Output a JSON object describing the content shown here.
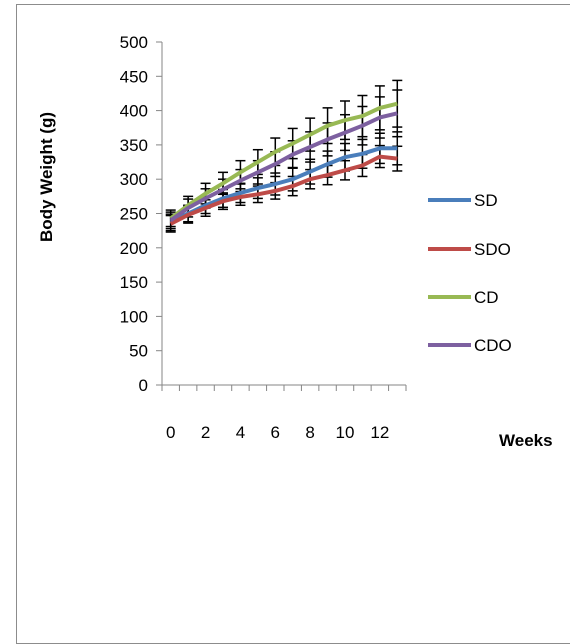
{
  "chart_data": {
    "type": "line",
    "title": "",
    "xlabel": "Weeks",
    "ylabel": "Body Weight (g)",
    "x": [
      0,
      1,
      2,
      3,
      4,
      5,
      6,
      7,
      8,
      9,
      10,
      11,
      12,
      13
    ],
    "x_tick_labels": [
      "0",
      "2",
      "4",
      "6",
      "8",
      "10",
      "12"
    ],
    "x_tick_values": [
      0,
      2,
      4,
      6,
      8,
      10,
      12
    ],
    "ylim": [
      0,
      500
    ],
    "y_ticks": [
      0,
      50,
      100,
      150,
      200,
      250,
      300,
      350,
      400,
      450,
      500
    ],
    "grid": false,
    "legend_position": "right",
    "series": [
      {
        "name": "SD",
        "color": "#4a7ebb",
        "values": [
          237,
          250,
          262,
          272,
          280,
          287,
          293,
          300,
          311,
          322,
          332,
          337,
          345,
          345
        ],
        "error": [
          12,
          12,
          12,
          13,
          14,
          15,
          16,
          17,
          18,
          19,
          20,
          21,
          22,
          24
        ]
      },
      {
        "name": "SDO",
        "color": "#be4b48",
        "values": [
          235,
          248,
          258,
          268,
          274,
          278,
          283,
          290,
          300,
          306,
          313,
          320,
          333,
          330
        ],
        "error": [
          12,
          12,
          12,
          12,
          12,
          12,
          12,
          14,
          14,
          14,
          14,
          16,
          16,
          18
        ]
      },
      {
        "name": "CD",
        "color": "#98b954",
        "values": [
          243,
          262,
          279,
          294,
          310,
          325,
          340,
          352,
          365,
          378,
          386,
          392,
          404,
          410
        ],
        "error": [
          12,
          13,
          15,
          16,
          17,
          18,
          20,
          22,
          24,
          26,
          28,
          30,
          32,
          34
        ]
      },
      {
        "name": "CDO",
        "color": "#7d60a0",
        "values": [
          240,
          258,
          272,
          285,
          298,
          310,
          322,
          336,
          347,
          358,
          368,
          378,
          390,
          396
        ],
        "error": [
          12,
          13,
          14,
          15,
          16,
          17,
          18,
          20,
          22,
          24,
          26,
          28,
          30,
          34
        ]
      }
    ]
  }
}
